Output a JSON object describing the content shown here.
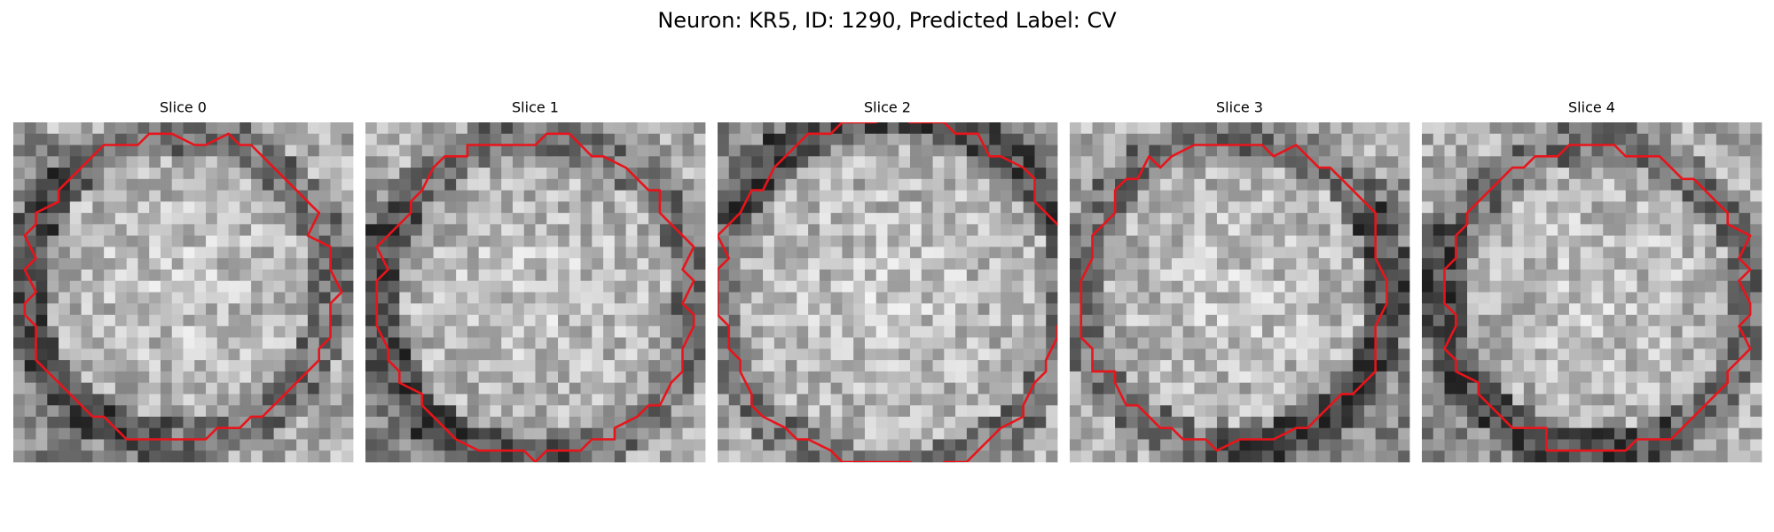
{
  "title": "Neuron: KR5, ID: 1290, Predicted Label: CV",
  "panels": [
    {
      "title": "Slice 0"
    },
    {
      "title": "Slice 1"
    },
    {
      "title": "Slice 2"
    },
    {
      "title": "Slice 3"
    },
    {
      "title": "Slice 4"
    }
  ]
}
